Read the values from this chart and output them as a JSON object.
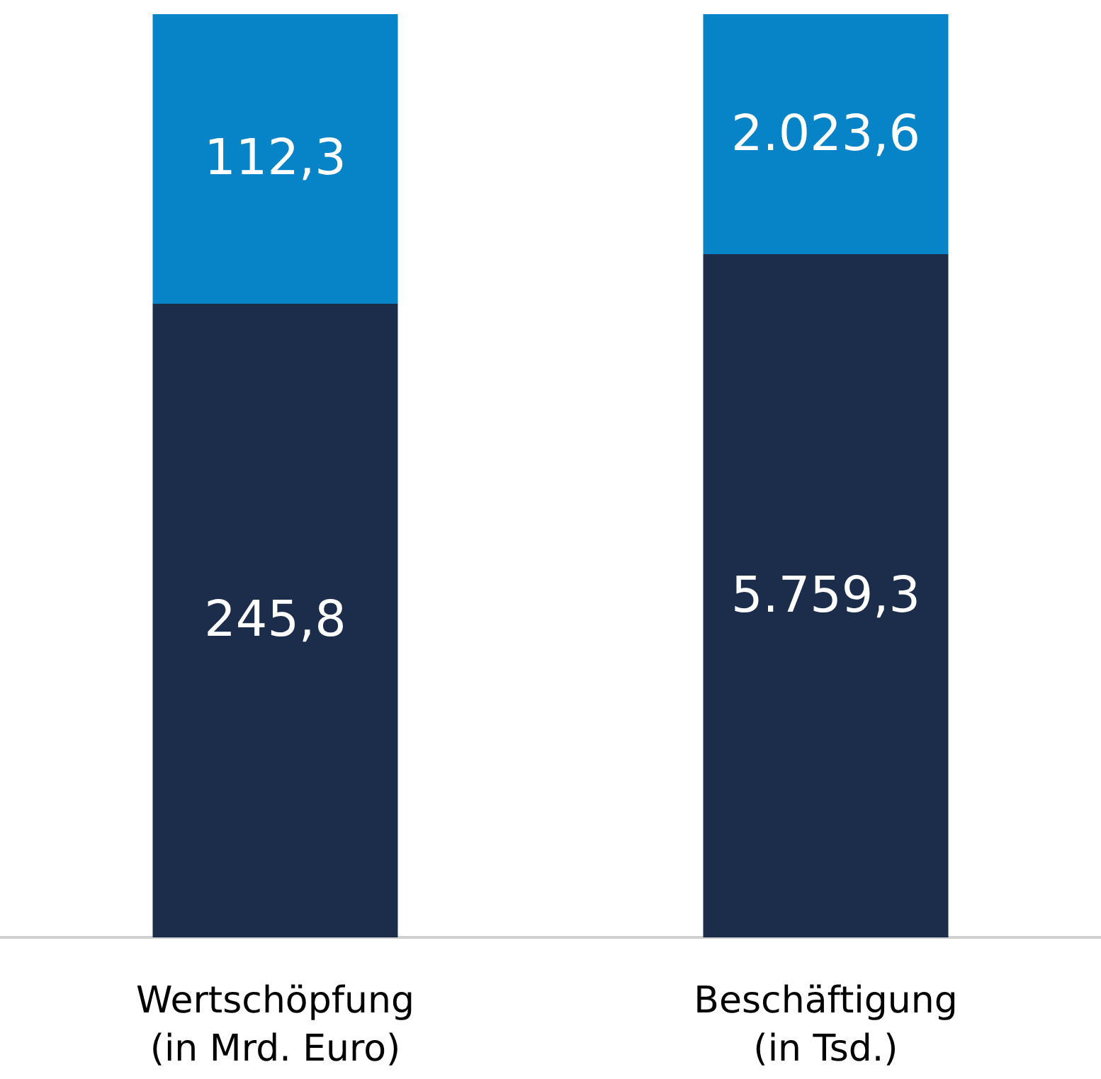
{
  "chart_data": {
    "type": "bar",
    "stacked": true,
    "categories": [
      "Wertschöpfung\n(in Mrd. Euro)",
      "Beschäftigung\n(in Tsd.)"
    ],
    "series": [
      {
        "color": "#1b2d4b",
        "values": [
          245.8,
          null
        ],
        "value_labels": [
          "245,8",
          null
        ]
      },
      {
        "color": "#0783c8",
        "values": [
          112.3,
          null
        ],
        "value_labels": [
          "112,3",
          null
        ]
      },
      {
        "color": "#1b2d4b",
        "axis": "y2",
        "values": [
          null,
          5759.3
        ],
        "value_labels": [
          null,
          "5.759,3"
        ]
      },
      {
        "color": "#0783c8",
        "axis": "y2",
        "values": [
          null,
          2023.6
        ],
        "value_labels": [
          null,
          "2.023,6"
        ]
      }
    ],
    "ylim": [
      0,
      358.1
    ],
    "y2lim": [
      0,
      7782.9
    ],
    "tick_labels": "x",
    "grid": false
  }
}
